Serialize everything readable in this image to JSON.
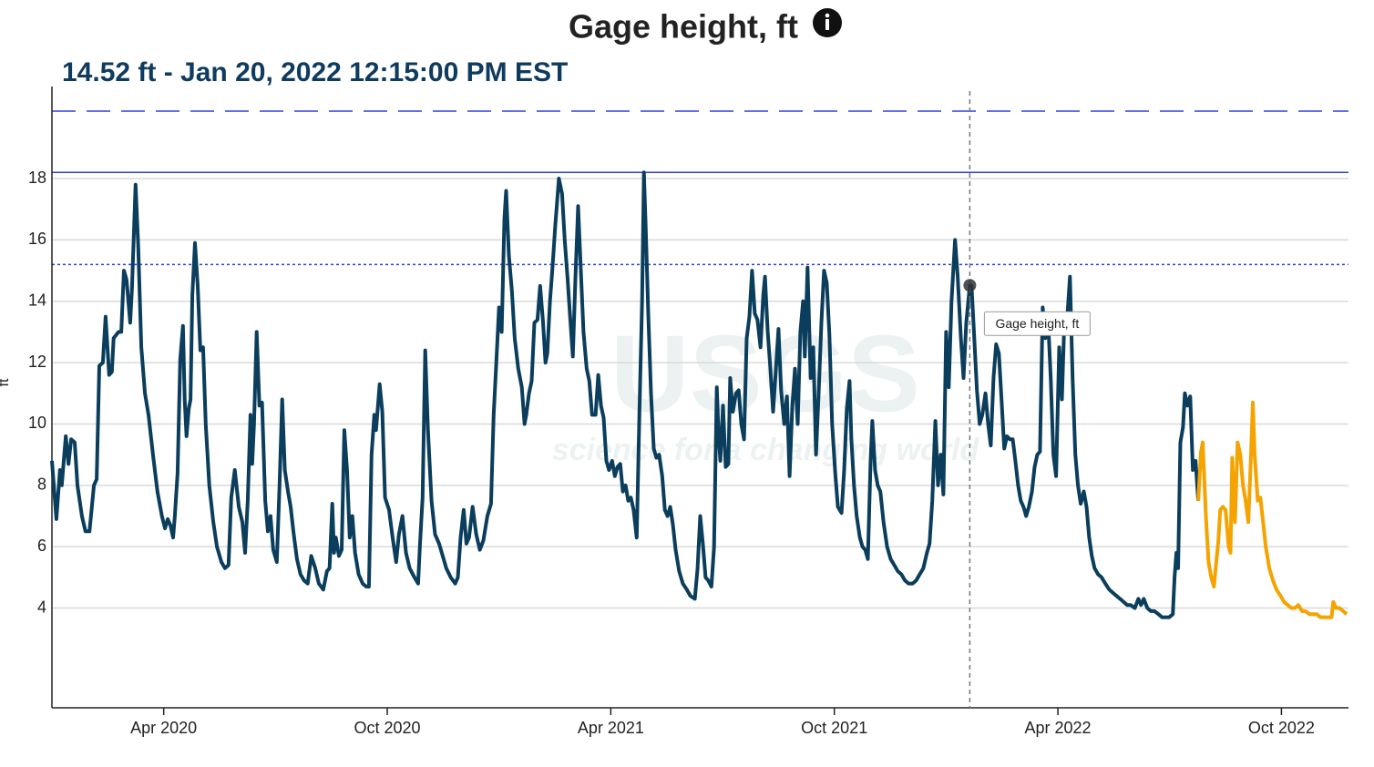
{
  "chart_data": {
    "type": "line",
    "title": "Gage height, ft",
    "subtitle": "14.52 ft - Jan 20, 2022 12:15:00 PM EST",
    "ylabel": "ft",
    "tooltip": "Gage height, ft",
    "watermark": [
      "USGS",
      "science for a changing world"
    ],
    "xlim": [
      2020,
      2022.9
    ],
    "ylim": [
      0.75,
      21
    ],
    "xticks": [
      {
        "value": 2020.25,
        "label": "Apr 2020"
      },
      {
        "value": 2020.75,
        "label": "Oct 2020"
      },
      {
        "value": 2021.25,
        "label": "Apr 2021"
      },
      {
        "value": 2021.75,
        "label": "Oct 2021"
      },
      {
        "value": 2022.25,
        "label": "Apr 2022"
      },
      {
        "value": 2022.75,
        "label": "Oct 2022"
      }
    ],
    "yticks": [
      4,
      6,
      8,
      10,
      12,
      14,
      16,
      18
    ],
    "grid": true,
    "reference_lines": [
      {
        "value": 20.2,
        "style": "dashed",
        "color": "#2f3fe0"
      },
      {
        "value": 18.2,
        "style": "solid",
        "color": "#2f3fe0"
      },
      {
        "value": 15.2,
        "style": "dotted",
        "color": "#2f3fe0"
      }
    ],
    "highlight": {
      "x": 2022.053,
      "value": 14.52
    },
    "series": [
      {
        "color": "#0b3d5c",
        "x": [
          2020.0,
          2020.01,
          2020.018,
          2020.022,
          2020.031,
          2020.037,
          2020.043,
          2020.051,
          2020.057,
          2020.067,
          2020.075,
          2020.084,
          2020.094,
          2020.1,
          2020.106,
          2020.114,
          2020.12,
          2020.128,
          2020.134,
          2020.138,
          2020.149,
          2020.155,
          2020.161,
          2020.167,
          2020.175,
          2020.179,
          2020.187,
          2020.193,
          2020.2,
          2020.208,
          2020.216,
          2020.226,
          2020.236,
          2020.246,
          2020.253,
          2020.259,
          2020.265,
          2020.271,
          2020.275,
          2020.281,
          2020.287,
          2020.293,
          2020.297,
          2020.301,
          2020.306,
          2020.31,
          2020.314,
          2020.32,
          2020.326,
          2020.332,
          2020.338,
          2020.344,
          2020.352,
          2020.361,
          2020.369,
          2020.379,
          2020.387,
          2020.395,
          2020.401,
          2020.409,
          2020.418,
          2020.426,
          2020.432,
          2020.438,
          2020.444,
          2020.448,
          2020.452,
          2020.458,
          2020.464,
          2020.47,
          2020.477,
          2020.483,
          2020.489,
          2020.495,
          2020.503,
          2020.509,
          2020.515,
          2020.521,
          2020.528,
          2020.534,
          2020.54,
          2020.548,
          2020.556,
          2020.564,
          2020.572,
          2020.58,
          2020.589,
          2020.597,
          2020.607,
          2020.615,
          2020.621,
          2020.627,
          2020.631,
          2020.635,
          2020.642,
          2020.648,
          2020.654,
          2020.66,
          2020.666,
          2020.672,
          2020.678,
          2020.686,
          2020.695,
          2020.703,
          2020.709,
          2020.715,
          2020.721,
          2020.725,
          2020.733,
          2020.739,
          2020.745,
          2020.754,
          2020.762,
          2020.77,
          2020.776,
          2020.784,
          2020.792,
          2020.8,
          2020.811,
          2020.819,
          2020.823,
          2020.829,
          2020.835,
          2020.841,
          2020.849,
          2020.857,
          2020.866,
          2020.874,
          2020.882,
          2020.892,
          2020.902,
          2020.908,
          2020.914,
          2020.921,
          2020.927,
          2020.933,
          2020.941,
          2020.949,
          2020.957,
          2020.965,
          2020.974,
          2020.982,
          2020.988,
          2020.994,
          2021.0,
          2021.006,
          2021.012,
          2021.016,
          2021.022,
          2021.029,
          2021.035,
          2021.043,
          2021.051,
          2021.057,
          2021.061,
          2021.067,
          2021.073,
          2021.079,
          2021.086,
          2021.092,
          2021.098,
          2021.104,
          2021.108,
          2021.114,
          2021.12,
          2021.126,
          2021.134,
          2021.141,
          2021.147,
          2021.153,
          2021.159,
          2021.165,
          2021.171,
          2021.177,
          2021.183,
          2021.189,
          2021.196,
          2021.202,
          2021.208,
          2021.216,
          2021.222,
          2021.228,
          2021.234,
          2021.24,
          2021.246,
          2021.253,
          2021.259,
          2021.265,
          2021.271,
          2021.277,
          2021.283,
          2021.289,
          2021.295,
          2021.301,
          2021.308,
          2021.314,
          2021.32,
          2021.324,
          2021.328,
          2021.334,
          2021.34,
          2021.346,
          2021.352,
          2021.358,
          2021.365,
          2021.371,
          2021.377,
          2021.383,
          2021.389,
          2021.395,
          2021.403,
          2021.411,
          2021.42,
          2021.428,
          2021.438,
          2021.444,
          2021.45,
          2021.456,
          2021.462,
          2021.468,
          2021.475,
          2021.481,
          2021.487,
          2021.491,
          2021.495,
          2021.501,
          2021.507,
          2021.513,
          2021.517,
          2021.523,
          2021.53,
          2021.536,
          2021.542,
          2021.548,
          2021.554,
          2021.56,
          2021.566,
          2021.572,
          2021.578,
          2021.585,
          2021.591,
          2021.595,
          2021.601,
          2021.607,
          2021.613,
          2021.619,
          2021.625,
          2021.631,
          2021.638,
          2021.644,
          2021.65,
          2021.656,
          2021.662,
          2021.668,
          2021.674,
          2021.68,
          2021.684,
          2021.69,
          2021.697,
          2021.703,
          2021.709,
          2021.715,
          2021.721,
          2021.727,
          2021.733,
          2021.739,
          2021.745,
          2021.752,
          2021.758,
          2021.766,
          2021.772,
          2021.778,
          2021.784,
          2021.788,
          2021.794,
          2021.8,
          2021.807,
          2021.813,
          2021.819,
          2021.825,
          2021.831,
          2021.835,
          2021.841,
          2021.847,
          2021.853,
          2021.86,
          2021.868,
          2021.876,
          2021.884,
          2021.892,
          2021.9,
          2021.908,
          2021.916,
          2021.925,
          2021.933,
          2021.941,
          2021.949,
          2021.957,
          2021.963,
          2021.969,
          2021.976,
          2021.982,
          2021.988,
          2021.994,
          2022.0,
          2022.006,
          2022.012,
          2022.02,
          2022.026,
          2022.033,
          2022.039,
          2022.045,
          2022.053,
          2022.057,
          2022.063,
          2022.069,
          2022.075,
          2022.081,
          2022.088,
          2022.094,
          2022.1,
          2022.106,
          2022.112,
          2022.118,
          2022.124,
          2022.13,
          2022.136,
          2022.143,
          2022.149,
          2022.155,
          2022.161,
          2022.167,
          2022.173,
          2022.179,
          2022.185,
          2022.192,
          2022.198,
          2022.204,
          2022.21,
          2022.216,
          2022.222,
          2022.228,
          2022.234,
          2022.24,
          2022.246,
          2022.253,
          2022.259,
          2022.265,
          2022.271,
          2022.277,
          2022.283,
          2022.289,
          2022.295,
          2022.301,
          2022.308,
          2022.314,
          2022.32,
          2022.326,
          2022.332,
          2022.34,
          2022.348,
          2022.356,
          2022.365,
          2022.373,
          2022.381,
          2022.389,
          2022.397,
          2022.405,
          2022.413,
          2022.422,
          2022.43,
          2022.436,
          2022.442,
          2022.45,
          2022.458,
          2022.466,
          2022.475,
          2022.483,
          2022.491,
          2022.499,
          2022.507,
          2022.511,
          2022.515,
          2022.519,
          2022.524,
          2022.53,
          2022.534,
          2022.54,
          2022.546,
          2022.552,
          2022.558,
          2022.564
        ],
        "values": [
          8.8,
          6.9,
          8.5,
          8.0,
          9.6,
          8.7,
          9.5,
          9.4,
          8.0,
          7.0,
          6.5,
          6.5,
          8.0,
          8.2,
          11.9,
          12.0,
          13.5,
          11.6,
          11.7,
          12.8,
          13.0,
          13.0,
          15.0,
          14.7,
          13.3,
          14.4,
          17.8,
          15.8,
          12.5,
          11.0,
          10.3,
          9.0,
          7.8,
          7.0,
          6.6,
          6.9,
          6.7,
          6.3,
          7.0,
          8.4,
          12.1,
          13.2,
          10.8,
          9.6,
          10.5,
          10.8,
          14.2,
          15.9,
          14.5,
          12.4,
          12.5,
          10.0,
          8.0,
          6.8,
          6.0,
          5.5,
          5.3,
          5.4,
          7.6,
          8.5,
          7.3,
          6.8,
          5.8,
          7.5,
          10.3,
          8.7,
          10.0,
          13.0,
          10.6,
          10.7,
          7.5,
          6.5,
          7.0,
          5.9,
          5.5,
          8.0,
          10.8,
          8.5,
          7.8,
          7.3,
          6.5,
          5.6,
          5.1,
          4.9,
          4.8,
          5.7,
          5.3,
          4.8,
          4.6,
          5.2,
          5.3,
          7.4,
          5.8,
          6.3,
          5.7,
          5.9,
          9.8,
          8.5,
          6.3,
          7.0,
          5.8,
          5.1,
          4.8,
          4.7,
          4.7,
          9.0,
          10.3,
          9.8,
          11.3,
          10.4,
          7.6,
          7.2,
          6.3,
          5.5,
          6.4,
          7.0,
          5.8,
          5.3,
          5.0,
          4.8,
          6.0,
          7.6,
          12.4,
          9.8,
          7.5,
          6.4,
          6.1,
          5.7,
          5.3,
          5.0,
          4.8,
          5.0,
          6.3,
          7.2,
          6.1,
          6.3,
          7.3,
          6.4,
          5.9,
          6.2,
          7.0,
          7.4,
          10.3,
          12.0,
          13.8,
          13.0,
          16.7,
          17.6,
          15.5,
          14.3,
          12.8,
          11.8,
          11.2,
          10.0,
          10.3,
          11.0,
          11.4,
          13.3,
          13.4,
          14.5,
          13.4,
          12.0,
          12.3,
          14.0,
          15.2,
          16.5,
          18.0,
          17.5,
          16.0,
          14.8,
          13.5,
          12.2,
          14.8,
          17.1,
          15.0,
          13.0,
          11.8,
          11.4,
          10.3,
          10.3,
          11.6,
          10.6,
          10.2,
          8.8,
          8.5,
          8.8,
          8.3,
          8.6,
          8.7,
          7.8,
          8.0,
          7.5,
          7.6,
          7.2,
          6.3,
          10.4,
          14.0,
          18.2,
          16.5,
          13.5,
          11.0,
          9.2,
          8.9,
          9.0,
          8.3,
          7.2,
          7.0,
          7.3,
          6.7,
          5.9,
          5.2,
          4.8,
          4.6,
          4.4,
          4.3,
          5.3,
          7.0,
          6.1,
          5.0,
          4.9,
          4.7,
          6.0,
          11.2,
          9.7,
          8.8,
          10.6,
          8.6,
          8.7,
          11.5,
          10.4,
          11.0,
          11.1,
          10.0,
          9.5,
          12.8,
          13.5,
          15.0,
          13.6,
          13.4,
          12.5,
          14.2,
          14.8,
          13.0,
          11.8,
          10.4,
          11.7,
          13.1,
          11.1,
          10.0,
          10.9,
          8.3,
          10.6,
          11.8,
          10.0,
          13.0,
          14.0,
          12.2,
          15.1,
          11.5,
          12.5,
          9.0,
          11.0,
          13.3,
          15.0,
          14.6,
          12.9,
          10.0,
          8.4,
          7.3,
          7.1,
          8.5,
          10.5,
          11.4,
          9.5,
          8.0,
          7.0,
          6.3,
          6.0,
          5.9,
          5.6,
          8.8,
          10.1,
          8.5,
          8.0,
          7.8,
          6.8,
          6.0,
          5.6,
          5.4,
          5.2,
          5.1,
          4.9,
          4.8,
          4.8,
          4.9,
          5.1,
          5.3,
          5.8,
          6.1,
          7.5,
          10.1,
          8.0,
          9.0,
          7.7,
          13.0,
          11.2,
          14.0,
          16.0,
          14.8,
          12.8,
          11.5,
          13.3,
          14.52,
          14.5,
          12.8,
          11.1,
          10.0,
          10.3,
          11.0,
          10.0,
          9.3,
          11.5,
          12.6,
          12.3,
          10.8,
          9.2,
          9.6,
          9.5,
          9.5,
          8.8,
          8.0,
          7.5,
          7.3,
          7.0,
          7.3,
          7.8,
          8.6,
          9.0,
          9.1,
          13.8,
          12.8,
          13.4,
          11.5,
          9.0,
          8.3,
          12.5,
          10.8,
          13.6,
          13.5,
          14.8,
          11.5,
          9.0,
          8.0,
          7.4,
          7.8,
          7.3,
          6.3,
          5.7,
          5.3,
          5.1,
          5.0,
          4.8,
          4.6,
          4.5,
          4.4,
          4.3,
          4.2,
          4.1,
          4.1,
          4.0,
          4.3,
          4.1,
          4.3,
          4.0,
          3.9,
          3.9,
          3.8,
          3.7,
          3.7,
          3.7,
          3.8,
          5.0,
          5.8,
          5.3,
          9.4,
          9.9,
          11.0,
          10.6,
          10.9,
          8.5,
          8.8,
          7.5
        ]
      },
      {
        "color": "#f5a300",
        "x": [
          2022.564,
          2022.57,
          2022.574,
          2022.581,
          2022.587,
          2022.593,
          2022.599,
          2022.605,
          2022.609,
          2022.613,
          2022.619,
          2022.625,
          2022.632,
          2022.636,
          2022.64,
          2022.646,
          2022.652,
          2022.658,
          2022.664,
          2022.67,
          2022.676,
          2022.682,
          2022.686,
          2022.69,
          2022.697,
          2022.703,
          2022.709,
          2022.715,
          2022.723,
          2022.731,
          2022.739,
          2022.748,
          2022.756,
          2022.764,
          2022.772,
          2022.78,
          2022.788,
          2022.796,
          2022.804,
          2022.813,
          2022.821,
          2022.829,
          2022.837,
          2022.845,
          2022.853,
          2022.862,
          2022.866,
          2022.872,
          2022.88,
          2022.888,
          2022.896
        ],
        "values": [
          7.5,
          9.1,
          9.4,
          7.0,
          5.5,
          5.0,
          4.7,
          5.6,
          6.2,
          7.2,
          7.3,
          7.2,
          6.0,
          5.8,
          8.9,
          6.8,
          9.4,
          9.0,
          8.0,
          7.5,
          6.8,
          9.0,
          10.7,
          9.0,
          7.5,
          7.6,
          6.8,
          6.0,
          5.3,
          4.9,
          4.6,
          4.4,
          4.2,
          4.1,
          4.0,
          4.0,
          4.1,
          3.9,
          3.9,
          3.8,
          3.8,
          3.8,
          3.7,
          3.7,
          3.7,
          3.7,
          4.2,
          4.0,
          4.0,
          3.9,
          3.8
        ]
      }
    ]
  }
}
